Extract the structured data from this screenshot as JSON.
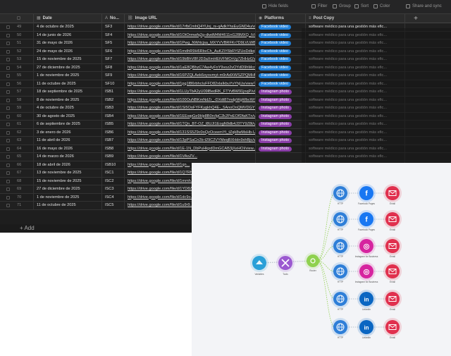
{
  "toolbar": {
    "buttons": [
      {
        "label": "Hide fields",
        "icon": "eye-off-icon"
      },
      {
        "label": "Filter",
        "icon": "filter-icon"
      },
      {
        "label": "Group",
        "icon": "group-icon"
      },
      {
        "label": "Sort",
        "icon": "sort-icon"
      },
      {
        "label": "Color",
        "icon": "color-icon"
      },
      {
        "label": "Share and sync",
        "icon": "share-icon"
      }
    ]
  },
  "columns": {
    "date": "Date",
    "no": "No...",
    "image_url": "Image URL",
    "platforms": "Platforms",
    "post_copy": "Post Copy",
    "add": "+"
  },
  "rows": [
    {
      "n": "49",
      "date": "4 de octubre de 2025",
      "no": "SF3",
      "url": "https://drive.google.com/file/d/17rfbCmhQ4YUnj_rs-qAdkYhsEuGND4u/view...",
      "platform": "Facebook video",
      "kind": "fb",
      "copy": "software médico para una gestión más efic..."
    },
    {
      "n": "50",
      "date": "14 de junio de 2026",
      "no": "SF4",
      "url": "https://drive.google.com/file/d/1OtOrmwfq2g-diwtM4M4611nG28MXQ_iV/...",
      "platform": "Facebook video",
      "kind": "fb",
      "copy": "software médico para una gestión más efic..."
    },
    {
      "n": "51",
      "date": "31 de mayo de 2026",
      "no": "SF5",
      "url": "https://drive.google.com/file/d/1Pwg_NWrtcjsa_MXYVVBRFKr7D9LVLWBMW/...",
      "platform": "Facebook video",
      "kind": "fb",
      "copy": "software médico para una gestión más efic..."
    },
    {
      "n": "52",
      "date": "24 de mayo de 2026",
      "no": "SF6",
      "url": "https://drive.google.com/file/d/1mdhR9H6RbvCh_AuKZiY6bRYlZUoDdkqU/view...",
      "platform": "Facebook video",
      "kind": "fb",
      "copy": "software médico para una gestión más efic..."
    },
    {
      "n": "53",
      "date": "15 de noviembre de 2025",
      "no": "SF7",
      "url": "https://drive.google.com/file/d/19bBhV8FJD3aXmHEtVFMOrVg7ZHHzGV/view?...",
      "platform": "Facebook video",
      "kind": "fb",
      "copy": "software médico para una gestión más efic..."
    },
    {
      "n": "54",
      "date": "27 de diciembre de 2025",
      "no": "SF8",
      "url": "https://drive.google.com/file/d/1aE8QBhzC7Aw4yFnY9voz2vOYdD9hMcr/view?...",
      "platform": "Facebook video",
      "kind": "fb",
      "copy": "software médico para una gestión más efic..."
    },
    {
      "n": "55",
      "date": "1 de noviembre de 2025",
      "no": "SF9",
      "url": "https://drive.google.com/file/d/16PZQLAek6oyovmyt-m9rAdXWSZPQMHU/view...",
      "platform": "Facebook video",
      "kind": "fb",
      "copy": "software médico para una gestión más efic..."
    },
    {
      "n": "56",
      "date": "11 de octubre de 2025",
      "no": "SF10",
      "url": "https://drive.google.com/file/d/1pg1f86rbhcIuFFD82xlaIkbuYvYhjUs/view?usp...",
      "platform": "Facebook video",
      "kind": "fb",
      "copy": "software médico para una gestión más efic..."
    },
    {
      "n": "57",
      "date": "18 de septiembre de 2025",
      "no": "ISB1",
      "url": "https://drive.google.com/file/d/1LUyTbA2yU09lBedRK_FTYvBW91jnqP/view?u...",
      "platform": "Instagram photo",
      "kind": "ig",
      "copy": "software médico para una gestión más efic..."
    },
    {
      "n": "58",
      "date": "8 de noviembre de 2025",
      "no": "ISB2",
      "url": "https://drive.google.com/file/d/100OuNBKmNdZr_-DXdt87mdpWgWbcW/view...",
      "platform": "Instagram photo",
      "kind": "ig",
      "copy": "software médico para una gestión más efic..."
    },
    {
      "n": "59",
      "date": "4 de octubre de 2025",
      "no": "ISB3",
      "url": "https://drive.google.com/file/d/1Si5OoFYFKygkhQ4E-_5AnoOnQMVDGYETAv/view...",
      "platform": "Instagram photo",
      "kind": "ig",
      "copy": "software médico para una gestión más efic..."
    },
    {
      "n": "60",
      "date": "30 de agosto de 2025",
      "no": "ISB4",
      "url": "https://drive.google.com/file/d/1EEwpGe9Hp8B0rcfgC2k2PeEOfDfaKTn/view?usp...",
      "platform": "Instagram photo",
      "kind": "ig",
      "copy": "software médico para una gestión más efic..."
    },
    {
      "n": "61",
      "date": "6 de septiembre de 2025",
      "no": "ISB5",
      "url": "https://drive.google.com/file/d/1TQn_BT-OZ_l8UJI1EogN9db4J3TY9Z8t/view?...",
      "platform": "Instagram photo",
      "kind": "ig",
      "copy": "software médico para una gestión más efic..."
    },
    {
      "n": "62",
      "date": "3 de enero de 2026",
      "no": "ISB6",
      "url": "https://drive.google.com/file/d/131SS5Z9c0oQzOceemYt_tZqk8wMsHb-U/view...",
      "platform": "Instagram photo",
      "kind": "ig",
      "copy": "software médico para una gestión más efic..."
    },
    {
      "n": "63",
      "date": "11 de abril de 2026",
      "no": "ISB7",
      "url": "https://drive.google.com/file/d/13pPSaCn2b-t29C2VYMeqBXHdn9xhBjc/view...",
      "platform": "Instagram photo",
      "kind": "ig",
      "copy": "software médico para una gestión más efic..."
    },
    {
      "n": "64",
      "date": "16 de mayo de 2026",
      "no": "ISB8",
      "url": "https://drive.google.com/file/d/1E-1N_DbPuHkpdDmGCAB3jXeHOI/view...",
      "platform": "Instagram photo",
      "kind": "ig",
      "copy": "software médico para una gestión más efic..."
    },
    {
      "n": "65",
      "date": "14 de marzo de 2026",
      "no": "ISB9",
      "url": "https://drive.google.com/file/d/1VAoZV...",
      "platform": "",
      "kind": "",
      "copy": "software médico para una gestión más efic..."
    },
    {
      "n": "66",
      "date": "18 de abril de 2026",
      "no": "ISB10",
      "url": "https://drive.google.com/file/d/1qn...",
      "platform": "",
      "kind": "",
      "copy": ""
    },
    {
      "n": "67",
      "date": "13 de noviembre de 2025",
      "no": "ISC1",
      "url": "https://drive.google.com/file/d/1Q7Rh...",
      "platform": "",
      "kind": "",
      "copy": ""
    },
    {
      "n": "68",
      "date": "15 de noviembre de 2025",
      "no": "ISC2",
      "url": "https://drive.google.com/file/d/1mmh...",
      "platform": "",
      "kind": "",
      "copy": ""
    },
    {
      "n": "69",
      "date": "27 de diciembre de 2025",
      "no": "ISC3",
      "url": "https://drive.google.com/file/d/1YD8Z...",
      "platform": "",
      "kind": "",
      "copy": ""
    },
    {
      "n": "70",
      "date": "1 de noviembre de 2025",
      "no": "ISC4",
      "url": "https://drive.google.com/file/d/1dc9o...",
      "platform": "",
      "kind": "",
      "copy": ""
    },
    {
      "n": "71",
      "date": "11 de octubre de 2025",
      "no": "ISC5",
      "url": "https://drive.google.com/file/d/1u9r9...",
      "platform": "",
      "kind": "",
      "copy": ""
    }
  ],
  "footer": {
    "add_label": "+ Add"
  },
  "scenario": {
    "trigger_label": "Variables",
    "tools_label": "Tools",
    "router_label": "Router",
    "outputs": [
      {
        "a": "HTTP",
        "b": "Facebook Pages",
        "c": "Email",
        "b_icon": "facebook-icon",
        "b_color": "#1877f2"
      },
      {
        "a": "HTTP",
        "b": "Facebook Pages",
        "c": "Email",
        "b_icon": "facebook-icon",
        "b_color": "#1877f2"
      },
      {
        "a": "HTTP",
        "b": "Instagram for Business",
        "c": "Email",
        "b_icon": "instagram-icon",
        "b_color": "#d6249f"
      },
      {
        "a": "HTTP",
        "b": "Instagram for Business",
        "c": "Email",
        "b_icon": "instagram-icon",
        "b_color": "#d6249f"
      },
      {
        "a": "HTTP",
        "b": "LinkedIn",
        "c": "Email",
        "b_icon": "linkedin-icon",
        "b_color": "#0a66c2"
      },
      {
        "a": "HTTP",
        "b": "LinkedIn",
        "c": "Email",
        "b_icon": "linkedin-icon",
        "b_color": "#0a66c2"
      }
    ],
    "colors": {
      "http": "#2f7fd8",
      "email": "#e0304e",
      "router": "#8fd14f",
      "tools": "#9b59d0",
      "trigger": "#2aa0d8"
    }
  }
}
